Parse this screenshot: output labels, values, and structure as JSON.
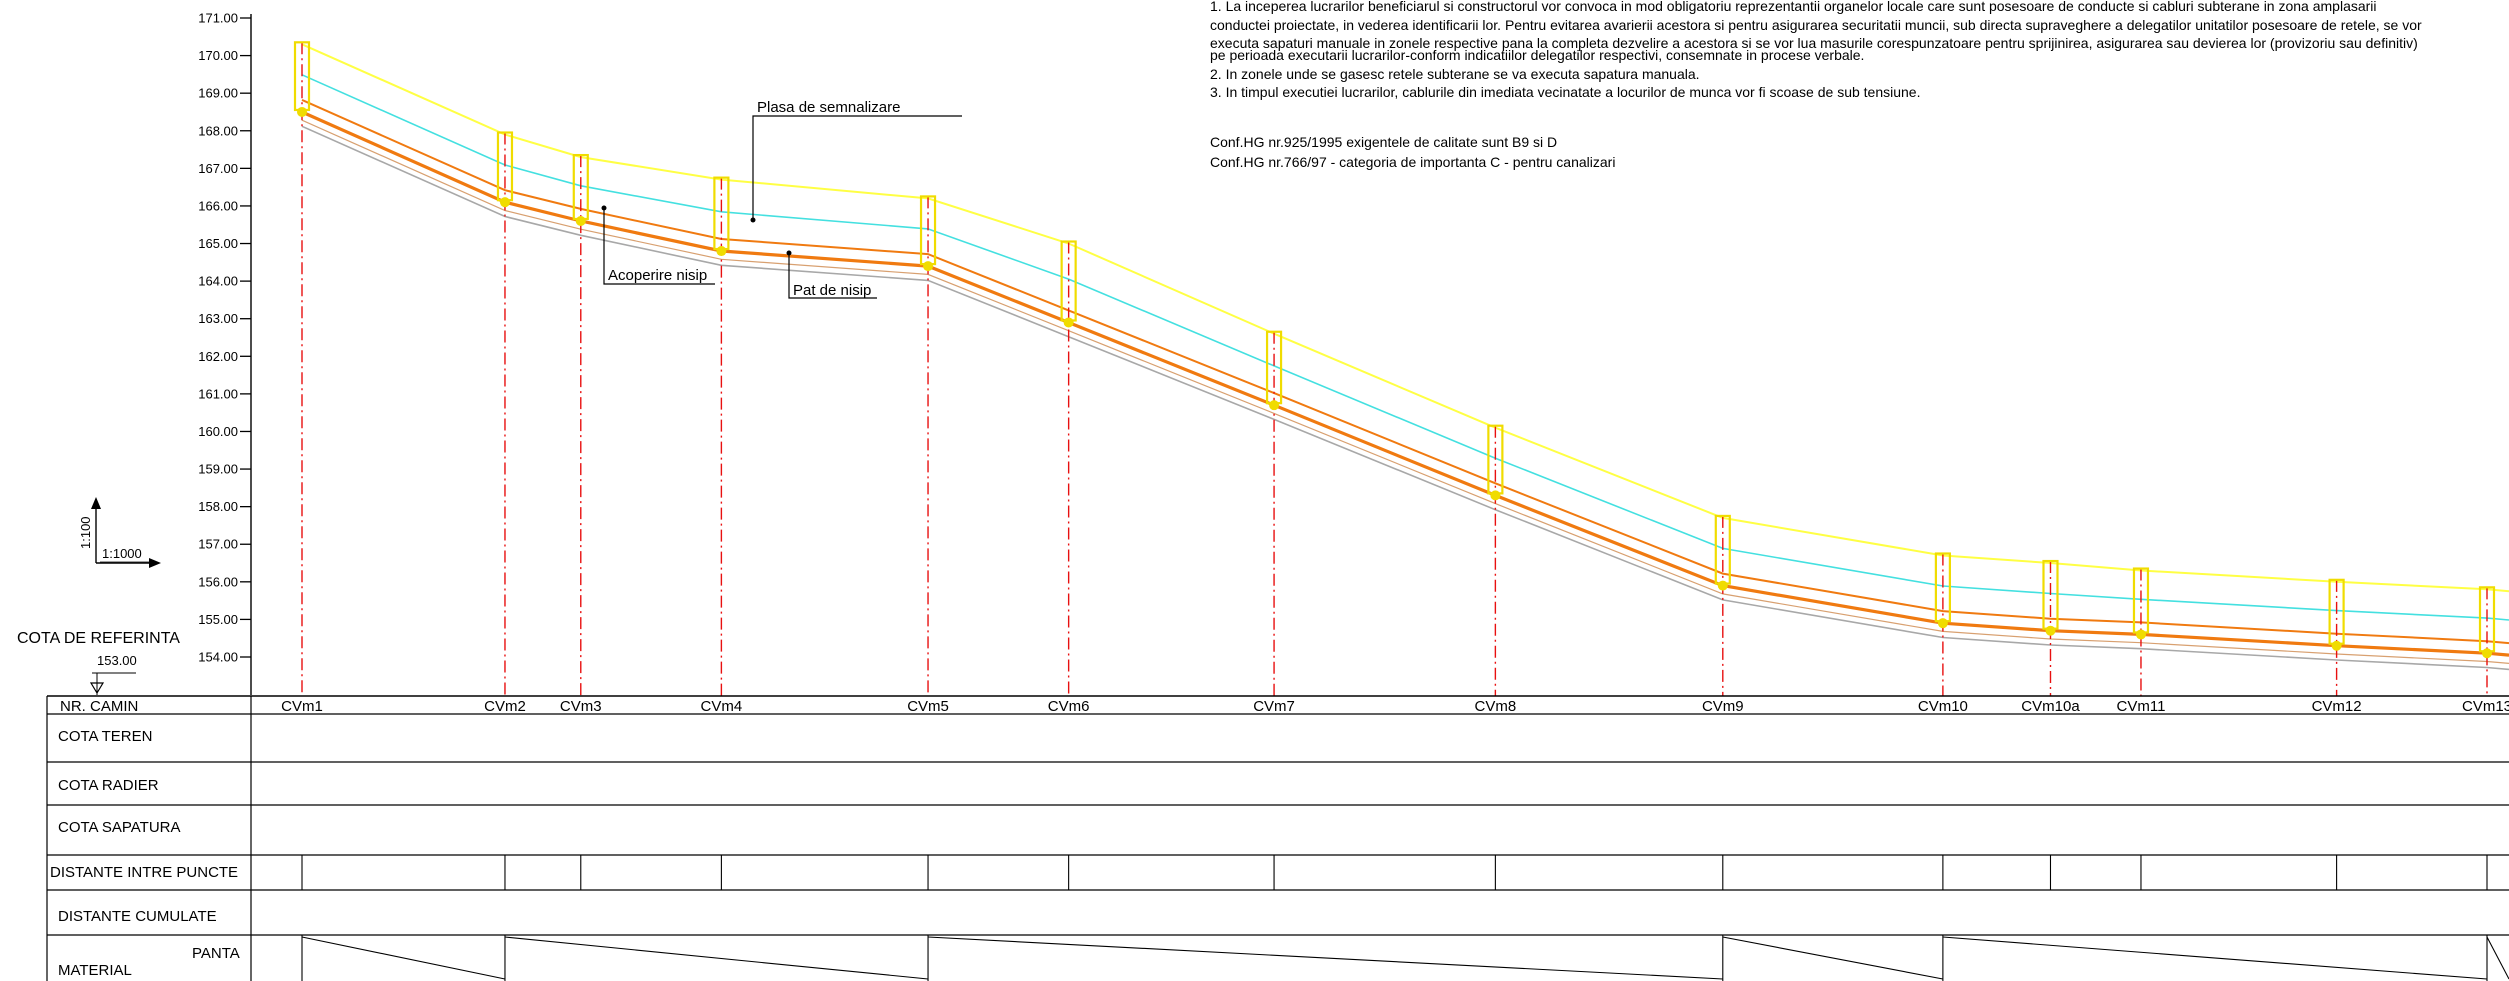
{
  "notes": {
    "lines": [
      "1. La inceperea lucrarilor beneficiarul si constructorul vor convoca in mod obligatoriu reprezentantii organelor locale care sunt posesoare de conducte si cabluri subterane in zona amplasarii",
      "conductei proiectate, in vederea identificarii lor. Pentru evitarea avarierii acestora si pentru asigurarea securitatii muncii, sub directa supraveghere a delegatilor unitatilor posesoare de retele, se vor",
      "executa sapaturi manuale in zonele respective pana la completa dezvelire a acestora si se vor lua masurile corespunzatoare pentru sprijinirea, asigurarea sau devierea lor (provizoriu sau definitiv)",
      "pe perioada executarii lucrarilor-conform indicatiilor delegatilor respectivi, consemnate in procese verbale.",
      "2. In zonele unde se gasesc retele subterane se va executa sapatura manuala.",
      "3. In timpul executiei lucrarilor, cablurile din imediata vecinatate a locurilor de munca vor fi scoase de sub tensiune."
    ],
    "conformity": [
      "Conf.HG nr.925/1995 exigentele de calitate sunt B9 si D",
      "Conf.HG nr.766/97 - categoria de importanta C - pentru canalizari"
    ]
  },
  "labels": {
    "signal_tape": "Plasa de semnalizare",
    "sand_cover": "Acoperire nisip",
    "sand_bed": "Pat de nisip"
  },
  "scale": {
    "vertical": "1:100",
    "horizontal": "1:1000"
  },
  "reference": {
    "label": "COTA DE REFERINTA",
    "value": "153.00"
  },
  "profile": {
    "elevation_min": 153,
    "elevation_max": 171,
    "elevation_ticks": [
      "171.00",
      "170.00",
      "169.00",
      "168.00",
      "167.00",
      "166.00",
      "165.00",
      "164.00",
      "163.00",
      "162.00",
      "161.00",
      "160.00",
      "159.00",
      "158.00",
      "157.00",
      "156.00",
      "155.00",
      "154.00"
    ],
    "colors": {
      "signal_tape": "#ffff44",
      "sand_cover": "#44e0e0",
      "pipe": "#f07a10",
      "sand_bed": "#a8a8a8",
      "manhole_axis": "#e81010",
      "manhole": "#f0dc00"
    },
    "chainage_max": 2040,
    "chainage_ticks": [
      0,
      166,
      228,
      343,
      512,
      627,
      795,
      976,
      1162,
      1342,
      1430,
      1504,
      1664,
      1787
    ],
    "manholes": [
      {
        "name": "CVm1",
        "chainage": 0,
        "invert": 168.5,
        "tape": 170.3
      },
      {
        "name": "CVm2",
        "chainage": 166,
        "invert": 166.1,
        "tape": 167.9
      },
      {
        "name": "CVm3",
        "chainage": 228,
        "invert": 165.6,
        "tape": 167.3
      },
      {
        "name": "CVm4",
        "chainage": 343,
        "invert": 164.8,
        "tape": 166.7
      },
      {
        "name": "CVm5",
        "chainage": 512,
        "invert": 164.4,
        "tape": 166.2
      },
      {
        "name": "CVm6",
        "chainage": 627,
        "invert": 162.9,
        "tape": 165.0
      },
      {
        "name": "CVm7",
        "chainage": 795,
        "invert": 160.7,
        "tape": 162.6
      },
      {
        "name": "CVm8",
        "chainage": 976,
        "invert": 158.3,
        "tape": 160.1
      },
      {
        "name": "CVm9",
        "chainage": 1162,
        "invert": 155.9,
        "tape": 157.7
      },
      {
        "name": "CVm10",
        "chainage": 1342,
        "invert": 154.9,
        "tape": 156.7
      },
      {
        "name": "CVm10a",
        "chainage": 1430,
        "invert": 154.7,
        "tape": 156.5
      },
      {
        "name": "CVm11",
        "chainage": 1504,
        "invert": 154.6,
        "tape": 156.3
      },
      {
        "name": "CVm12",
        "chainage": 1664,
        "invert": 154.3,
        "tape": 156.0
      },
      {
        "name": "CVm13",
        "chainage": 1787,
        "invert": 154.1,
        "tape": 155.8
      }
    ]
  },
  "table": {
    "rows": [
      {
        "key": "nr_camin",
        "label": "NR. CAMIN"
      },
      {
        "key": "cota_teren",
        "label": "COTA TEREN"
      },
      {
        "key": "cota_radier",
        "label": "COTA RADIER"
      },
      {
        "key": "cota_sapatura",
        "label": "COTA SAPATURA"
      },
      {
        "key": "distante",
        "label": "DISTANTE INTRE PUNCTE"
      },
      {
        "key": "cumulate",
        "label": "DISTANTE CUMULATE"
      },
      {
        "key": "panta",
        "label": "PANTA"
      },
      {
        "key": "material",
        "label": "MATERIAL"
      }
    ],
    "slope_breaks": [
      0,
      166,
      512,
      1162,
      1342,
      1787
    ]
  }
}
